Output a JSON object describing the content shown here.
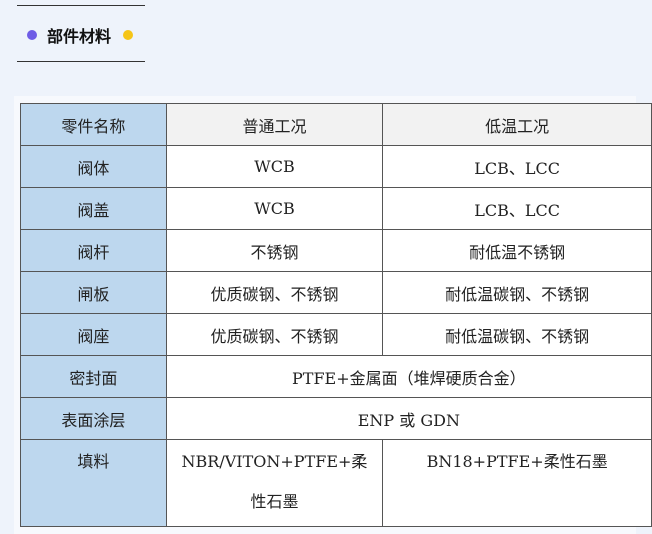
{
  "section": {
    "title": "部件材料",
    "dot_left_color": "#6e5ce6",
    "dot_right_color": "#f5c518"
  },
  "table": {
    "headers": [
      "零件名称",
      "普通工况",
      "低温工况"
    ],
    "rows": [
      [
        "阀体",
        "WCB",
        "LCB、LCC"
      ],
      [
        "阀盖",
        "WCB",
        "LCB、LCC"
      ],
      [
        "阀杆",
        "不锈钢",
        "耐低温不锈钢"
      ],
      [
        "闸板",
        "优质碳钢、不锈钢",
        "耐低温碳钢、不锈钢"
      ],
      [
        "阀座",
        "优质碳钢、不锈钢",
        "耐低温碳钢、不锈钢"
      ],
      [
        "密封面",
        "PTFE+金属面（堆焊硬质合金）"
      ],
      [
        "表面涂层",
        "ENP 或 GDN"
      ],
      [
        "填料",
        "NBR/VITON+PTFE+柔性石墨",
        "BN18+PTFE+柔性石墨"
      ]
    ]
  }
}
